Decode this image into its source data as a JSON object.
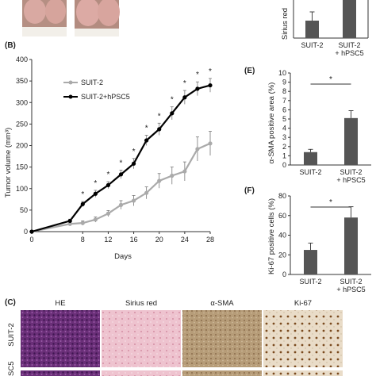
{
  "panel_labels": {
    "b": "(B)",
    "c": "(C)",
    "e": "(E)",
    "f": "(F)"
  },
  "colors": {
    "suit2": "#aaaaaa",
    "hpsc5": "#000000",
    "bar": "#555555",
    "tissue_he": "#7a3f86",
    "tissue_sirius": "#e8b9c6",
    "tissue_sma": "#b89e7a",
    "tissue_ki67": "#e6d9c4"
  },
  "chart_data": [
    {
      "id": "B",
      "type": "line",
      "xlabel": "Days",
      "ylabel": "Tumor volume (mm³)",
      "x_ticks": [
        "0",
        "8",
        "12",
        "16",
        "20",
        "24",
        "28"
      ],
      "ylim": [
        0,
        400
      ],
      "y_ticks": [
        "0",
        "50",
        "100",
        "150",
        "200",
        "250",
        "300",
        "350",
        "400"
      ],
      "x": [
        0,
        6,
        8,
        10,
        12,
        14,
        16,
        18,
        20,
        22,
        24,
        26,
        28
      ],
      "series": [
        {
          "name": "SUIT-2",
          "values": [
            0,
            18,
            20,
            28,
            42,
            62,
            72,
            90,
            118,
            130,
            140,
            192,
            205
          ],
          "errors": [
            0,
            4,
            5,
            6,
            7,
            10,
            12,
            14,
            17,
            20,
            22,
            28,
            28
          ]
        },
        {
          "name": "SUIT-2+hPSC5",
          "values": [
            0,
            25,
            64,
            88,
            108,
            133,
            158,
            212,
            238,
            275,
            312,
            332,
            340
          ],
          "errors": [
            0,
            4,
            6,
            8,
            8,
            10,
            12,
            12,
            14,
            15,
            16,
            16,
            16
          ]
        }
      ],
      "significance": [
        "",
        "",
        "*",
        "*",
        "*",
        "*",
        "*",
        "*",
        "*",
        "*",
        "*",
        "*",
        "*"
      ],
      "legend": "top-left"
    },
    {
      "id": "A-right",
      "type": "bar",
      "ylabel": "Sirius red",
      "categories": [
        "SUIT-2",
        "SUIT-2 + hPSC5"
      ],
      "values": [
        1.0,
        3.6
      ],
      "errors": [
        0.5,
        0.6
      ],
      "ylim": [
        0,
        4
      ]
    },
    {
      "id": "E",
      "type": "bar",
      "ylabel": "α-SMA positive area (%)",
      "categories": [
        "SUIT-2",
        "SUIT-2 + hPSC5"
      ],
      "values": [
        1.4,
        5.1
      ],
      "errors": [
        0.3,
        0.8
      ],
      "ylim": [
        0,
        10
      ],
      "y_ticks": [
        "0",
        "1",
        "2",
        "3",
        "4",
        "5",
        "6",
        "7",
        "8",
        "9",
        "10"
      ],
      "significance": "*"
    },
    {
      "id": "F",
      "type": "bar",
      "ylabel": "Ki-67 positive cells (%)",
      "categories": [
        "SUIT-2",
        "SUIT-2 + hPSC5"
      ],
      "values": [
        25,
        58
      ],
      "errors": [
        7,
        11
      ],
      "ylim": [
        0,
        80
      ],
      "y_ticks": [
        "0",
        "20",
        "40",
        "60",
        "80"
      ],
      "significance": "*"
    }
  ],
  "histology": {
    "columns": [
      "HE",
      "Sirius red",
      "α-SMA",
      "Ki-67"
    ],
    "rows": [
      "SUIT-2",
      "SC5"
    ]
  }
}
